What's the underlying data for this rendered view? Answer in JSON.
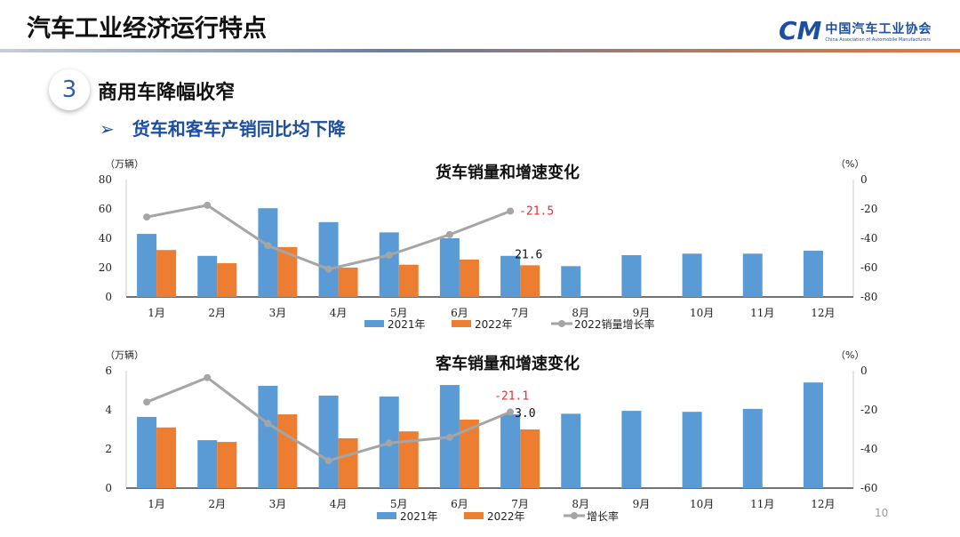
{
  "header": {
    "title": "汽车工业经济运行特点",
    "logo_text": "中国汽车工业协会",
    "logo_en": "China Association of Automobile Manufacturers",
    "logo_mark": "CAM"
  },
  "section": {
    "number": "3",
    "title": "商用车降幅收窄"
  },
  "bullet": {
    "marker": "➢",
    "text": "货车和客车产销同比均下降"
  },
  "page_number": "10",
  "colors": {
    "s2021": "#5b9bd5",
    "s2022": "#ed7d31",
    "growth": "#a5a5a5",
    "label_red": "#e03030"
  },
  "chart_data": [
    {
      "type": "bar",
      "title": "货车销量和增速变化",
      "ylabel": "（万辆）",
      "y2label": "（%）",
      "categories": [
        "1月",
        "2月",
        "3月",
        "4月",
        "5月",
        "6月",
        "7月",
        "8月",
        "9月",
        "10月",
        "11月",
        "12月"
      ],
      "ylim": [
        0,
        80
      ],
      "yticks": [
        0,
        20,
        40,
        60,
        80
      ],
      "y2lim": [
        -80,
        0
      ],
      "y2ticks": [
        0,
        -20,
        -40,
        -60,
        -80
      ],
      "series": [
        {
          "name": "2021年",
          "kind": "bar",
          "values": [
            43,
            28,
            60.5,
            51,
            44,
            40,
            28,
            21,
            28.5,
            29.5,
            29.5,
            31.5
          ]
        },
        {
          "name": "2022年",
          "kind": "bar",
          "values": [
            32,
            23,
            34,
            20,
            22,
            25.5,
            21.6,
            null,
            null,
            null,
            null,
            null
          ]
        },
        {
          "name": "2022销量增长率",
          "kind": "line",
          "axis": "right",
          "values": [
            -25.5,
            -17.5,
            -45,
            -61,
            -51.5,
            -37.5,
            -21.5,
            null,
            null,
            null,
            null,
            null
          ]
        }
      ],
      "annotations": [
        {
          "text": "-21.5",
          "color": "red"
        },
        {
          "text": "21.6",
          "color": "black"
        }
      ],
      "legend": "bottom"
    },
    {
      "type": "bar",
      "title": "客车销量和增速变化",
      "ylabel": "（万辆）",
      "y2label": "（%）",
      "categories": [
        "1月",
        "2月",
        "3月",
        "4月",
        "5月",
        "6月",
        "7月",
        "8月",
        "9月",
        "10月",
        "11月",
        "12月"
      ],
      "ylim": [
        0,
        6
      ],
      "yticks": [
        0,
        2,
        4,
        6
      ],
      "y2lim": [
        -60,
        0
      ],
      "y2ticks": [
        0,
        -20,
        -40,
        -60
      ],
      "series": [
        {
          "name": "2021年",
          "kind": "bar",
          "values": [
            3.64,
            2.45,
            5.23,
            4.73,
            4.68,
            5.27,
            3.77,
            3.8,
            3.95,
            3.9,
            4.05,
            5.4
          ]
        },
        {
          "name": "2022年",
          "kind": "bar",
          "values": [
            3.1,
            2.36,
            3.77,
            2.55,
            2.9,
            3.5,
            3.0,
            null,
            null,
            null,
            null,
            null
          ]
        },
        {
          "name": "增长率",
          "kind": "line",
          "axis": "right",
          "values": [
            -16,
            -3.5,
            -27,
            -46,
            -37,
            -34,
            -21.1,
            null,
            null,
            null,
            null,
            null
          ]
        }
      ],
      "annotations": [
        {
          "text": "-21.1",
          "color": "red"
        },
        {
          "text": "3.0",
          "color": "black"
        }
      ],
      "legend": "bottom"
    }
  ]
}
